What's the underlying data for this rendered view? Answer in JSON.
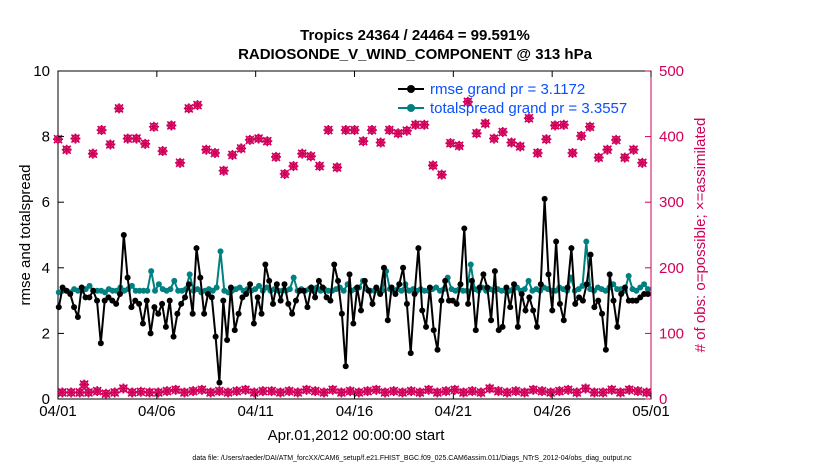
{
  "chart_data": {
    "type": "line",
    "title": "Tropics 24364 / 24464 = 99.591%",
    "subtitle": "RADIOSONDE_V_WIND_COMPONENT @ 313 hPa",
    "xlabel": "Apr.01,2012 00:00:00 start",
    "ylabel": "rmse and totalspread",
    "ylabel_right": "# of obs: o=possible; ×=assimilated",
    "x_ticks": [
      "04/01",
      "04/06",
      "04/11",
      "04/16",
      "04/21",
      "04/26",
      "05/01"
    ],
    "y_ticks": [
      "0",
      "2",
      "4",
      "6",
      "8",
      "10"
    ],
    "y_ticks_right": [
      "0",
      "100",
      "200",
      "300",
      "400",
      "500"
    ],
    "xlim": [
      0,
      30
    ],
    "ylim": [
      0,
      10
    ],
    "ylim_right": [
      0,
      500
    ],
    "x_step_days": 0.25,
    "legend_position": "top-right",
    "footnote": "data file: /Users/raeder/DAI/ATM_forcXX/CAM6_setup/f.e21.FHIST_BGC.f09_025.CAM6assim.011/Diags_NTrS_2012-04/obs_diag_output.nc",
    "colors": {
      "rmse": "#000000",
      "spread": "#008080",
      "obs": "#d0005a",
      "legend_text": "#0a50ff"
    },
    "series": [
      {
        "name": "rmse grand pr = 3.1172",
        "axis": "left",
        "values": [
          2.8,
          3.4,
          3.3,
          3.2,
          2.8,
          2.5,
          3.4,
          3.1,
          3.1,
          3.3,
          3.0,
          1.7,
          3.0,
          3.1,
          3.0,
          2.9,
          3.2,
          5.0,
          3.7,
          2.8,
          3.0,
          2.9,
          2.3,
          3.0,
          2.0,
          2.8,
          2.6,
          2.9,
          2.2,
          3.0,
          1.9,
          2.6,
          2.9,
          3.1,
          3.5,
          2.6,
          4.6,
          3.7,
          2.6,
          3.2,
          3.1,
          1.9,
          0.5,
          3.0,
          1.8,
          3.4,
          2.1,
          2.6,
          3.1,
          3.2,
          3.5,
          2.3,
          3.1,
          2.6,
          4.1,
          3.6,
          2.9,
          3.5,
          3.0,
          3.5,
          2.9,
          2.6,
          3.0,
          3.3,
          3.3,
          2.8,
          3.4,
          3.1,
          3.6,
          3.4,
          3.1,
          3.0,
          4.1,
          3.6,
          2.6,
          1.0,
          3.8,
          2.3,
          3.4,
          2.7,
          3.6,
          3.3,
          2.9,
          3.4,
          3.2,
          4.0,
          2.4,
          3.4,
          3.2,
          3.5,
          4.0,
          2.9,
          1.4,
          3.2,
          4.6,
          2.7,
          2.2,
          3.4,
          2.1,
          1.5,
          3.0,
          3.6,
          3.0,
          3.0,
          2.9,
          3.5,
          5.2,
          2.9,
          3.6,
          2.1,
          3.4,
          3.8,
          3.4,
          2.4,
          3.9,
          2.1,
          2.2,
          3.4,
          2.8,
          3.5,
          2.2,
          3.2,
          2.7,
          3.1,
          2.7,
          2.2,
          3.5,
          6.1,
          3.8,
          2.7,
          4.8,
          2.9,
          2.4,
          3.4,
          4.6,
          2.9,
          3.1,
          3.0,
          3.5,
          4.4,
          2.8,
          3.0,
          2.6,
          1.5,
          3.8,
          3.0,
          2.2,
          3.2,
          3.4,
          3.0,
          3.0,
          3.0,
          3.1,
          3.2,
          3.2
        ]
      },
      {
        "name": "totalspread grand pr = 3.3557",
        "axis": "left",
        "values": [
          3.25,
          3.3,
          3.3,
          3.25,
          3.35,
          3.3,
          3.3,
          3.35,
          3.45,
          3.3,
          3.3,
          3.3,
          3.25,
          3.35,
          3.3,
          3.3,
          3.4,
          3.3,
          3.35,
          3.45,
          3.3,
          3.3,
          3.3,
          3.3,
          3.9,
          3.3,
          3.5,
          3.35,
          3.3,
          3.35,
          3.6,
          3.3,
          3.3,
          3.35,
          3.8,
          3.3,
          3.35,
          3.25,
          3.3,
          3.35,
          3.3,
          3.4,
          4.5,
          3.3,
          3.25,
          3.3,
          3.35,
          3.4,
          3.3,
          3.35,
          3.3,
          3.35,
          3.45,
          3.3,
          3.4,
          3.3,
          3.35,
          3.3,
          3.3,
          3.3,
          3.35,
          3.7,
          3.3,
          3.35,
          3.3,
          3.35,
          3.3,
          3.4,
          3.3,
          3.35,
          3.3,
          3.3,
          3.35,
          3.4,
          3.3,
          3.5,
          3.3,
          3.35,
          3.4,
          3.6,
          3.35,
          3.3,
          3.3,
          3.3,
          3.3,
          3.9,
          3.35,
          3.3,
          3.35,
          3.3,
          3.5,
          3.3,
          3.35,
          3.3,
          3.35,
          3.3,
          3.3,
          3.35,
          3.4,
          3.3,
          3.35,
          3.7,
          3.35,
          3.3,
          3.35,
          3.3,
          3.3,
          4.1,
          3.35,
          3.3,
          3.4,
          3.3,
          3.35,
          3.3,
          3.35,
          3.3,
          3.3,
          3.3,
          3.35,
          3.4,
          3.3,
          3.35,
          3.6,
          3.3,
          3.35,
          3.3,
          3.4,
          3.35,
          3.3,
          3.3,
          3.4,
          3.35,
          3.3,
          3.7,
          3.3,
          3.35,
          3.45,
          4.8,
          3.35,
          3.3,
          3.4,
          3.35,
          3.3,
          3.4,
          3.5,
          3.35,
          3.35,
          3.3,
          3.75,
          3.35,
          3.3,
          3.4,
          3.5,
          3.35
        ]
      }
    ],
    "obs_possible": {
      "name": "possible",
      "axis": "right",
      "values": [
        396,
        10,
        380,
        10,
        397,
        10,
        22,
        10,
        374,
        12,
        410,
        8,
        388,
        10,
        443,
        16,
        397,
        10,
        397,
        11,
        389,
        10,
        415,
        10,
        378,
        12,
        417,
        14,
        360,
        10,
        443,
        12,
        448,
        14,
        380,
        10,
        375,
        12,
        348,
        10,
        372,
        12,
        382,
        14,
        395,
        10,
        397,
        12,
        393,
        12,
        369,
        10,
        343,
        12,
        355,
        10,
        374,
        14,
        370,
        12,
        355,
        10,
        410,
        14,
        353,
        10,
        410,
        12,
        410,
        10,
        393,
        12,
        410,
        14,
        391,
        10,
        410,
        12,
        405,
        10,
        409,
        12,
        418,
        10,
        418,
        14,
        356,
        10,
        342,
        12,
        390,
        14,
        386,
        10,
        453,
        12,
        405,
        10,
        420,
        16,
        397,
        12,
        407,
        10,
        391,
        12,
        385,
        10,
        428,
        14,
        375,
        12,
        396,
        10,
        417,
        12,
        418,
        14,
        375,
        10,
        401,
        16,
        415,
        10,
        368,
        10,
        380,
        14,
        395,
        10,
        368,
        14,
        380,
        12,
        360,
        10
      ],
      "note": "alternating upper (~340-455) and lower (~10-25) values, one per 6 hours"
    },
    "obs_assimilated": {
      "name": "assimilated",
      "axis": "right",
      "values_same_as_possible": true
    }
  }
}
